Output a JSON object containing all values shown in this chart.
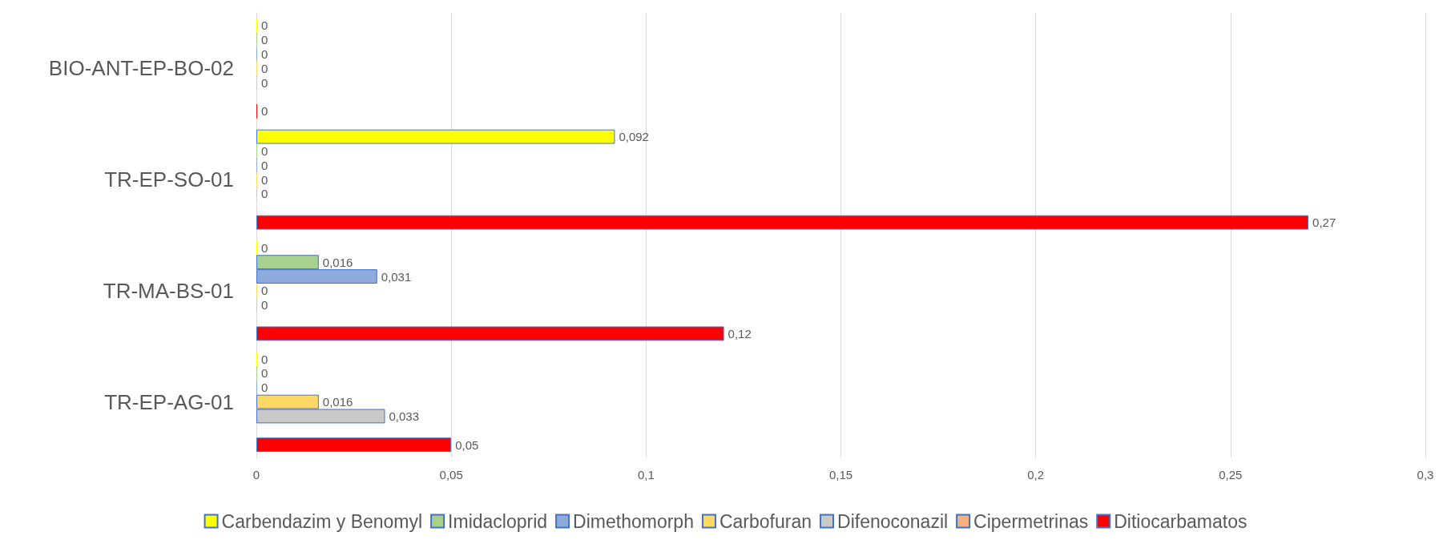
{
  "chart_data": {
    "type": "bar",
    "orientation": "horizontal",
    "categories": [
      "BIO-ANT-EP-BO-02",
      "TR-EP-SO-01",
      "TR-MA-BS-01",
      "TR-EP-AG-01"
    ],
    "series": [
      {
        "name": "Carbendazim y Benomyl",
        "color": "#ffff00",
        "values": [
          0,
          0.092,
          0,
          0
        ],
        "value_labels": [
          "0",
          "0,092",
          "0",
          "0"
        ]
      },
      {
        "name": "Imidacloprid",
        "color": "#a9d18e",
        "values": [
          0,
          0,
          0.016,
          0
        ],
        "value_labels": [
          "0",
          "0",
          "0,016",
          "0"
        ]
      },
      {
        "name": "Dimethomorph",
        "color": "#8faadc",
        "values": [
          0,
          0,
          0.031,
          0
        ],
        "value_labels": [
          "0",
          "0",
          "0,031",
          "0"
        ]
      },
      {
        "name": "Carbofuran",
        "color": "#ffd966",
        "values": [
          0,
          0,
          0,
          0.016
        ],
        "value_labels": [
          "0",
          "0",
          "0",
          "0,016"
        ]
      },
      {
        "name": "Difenoconazil",
        "color": "#c9c9c9",
        "values": [
          0,
          0,
          0,
          0.033
        ],
        "value_labels": [
          "0",
          "0",
          "0",
          "0,033"
        ]
      },
      {
        "name": "Cipermetrinas",
        "color": "#f4b183",
        "values": [
          null,
          null,
          null,
          null
        ],
        "value_labels": [
          null,
          null,
          null,
          null
        ]
      },
      {
        "name": "Ditiocarbamatos",
        "color": "#ff0000",
        "values": [
          0,
          0.27,
          0.12,
          0.05
        ],
        "value_labels": [
          "0",
          "0,27",
          "0,12",
          "0,05"
        ]
      }
    ],
    "xlim": [
      0,
      0.3
    ],
    "xticks": [
      0,
      {
        "value": 0.05,
        "label": "0,05"
      },
      {
        "value": 0.1,
        "label": "0,1"
      },
      {
        "value": 0.15,
        "label": "0,15"
      },
      {
        "value": 0.2,
        "label": "0,2"
      },
      {
        "value": 0.25,
        "label": "0,25"
      },
      {
        "value": 0.3,
        "label": "0,3"
      }
    ],
    "grid": "x",
    "legend": "bottom"
  }
}
